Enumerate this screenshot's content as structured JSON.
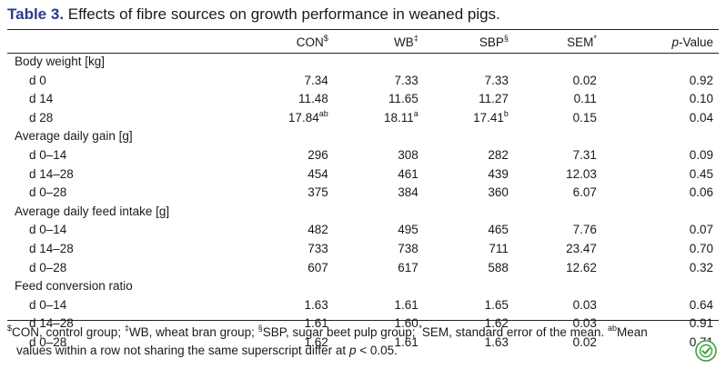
{
  "caption": {
    "label": "Table 3.",
    "text": "Effects of fibre sources on growth performance in weaned pigs."
  },
  "header": {
    "con": "CON",
    "con_mark": "$",
    "wb": "WB",
    "wb_mark": "‡",
    "sbp": "SBP",
    "sbp_mark": "§",
    "sem": "SEM",
    "sem_mark": "*",
    "p_italic": "p",
    "p_rest": "-Value"
  },
  "sections": [
    {
      "title": "Body weight [kg]",
      "rows": [
        {
          "label": "d 0",
          "con": "7.34",
          "con_sup": "",
          "wb": "7.33",
          "wb_sup": "",
          "sbp": "7.33",
          "sbp_sup": "",
          "sem": "0.02",
          "p": "0.92"
        },
        {
          "label": "d 14",
          "con": "11.48",
          "con_sup": "",
          "wb": "11.65",
          "wb_sup": "",
          "sbp": "11.27",
          "sbp_sup": "",
          "sem": "0.11",
          "p": "0.10"
        },
        {
          "label": "d 28",
          "con": "17.84",
          "con_sup": "ab",
          "wb": "18.11",
          "wb_sup": "a",
          "sbp": "17.41",
          "sbp_sup": "b",
          "sem": "0.15",
          "p": "0.04"
        }
      ]
    },
    {
      "title": "Average daily gain [g]",
      "rows": [
        {
          "label": "d 0–14",
          "con": "296",
          "con_sup": "",
          "wb": "308",
          "wb_sup": "",
          "sbp": "282",
          "sbp_sup": "",
          "sem": "7.31",
          "p": "0.09"
        },
        {
          "label": "d 14–28",
          "con": "454",
          "con_sup": "",
          "wb": "461",
          "wb_sup": "",
          "sbp": "439",
          "sbp_sup": "",
          "sem": "12.03",
          "p": "0.45"
        },
        {
          "label": "d 0–28",
          "con": "375",
          "con_sup": "",
          "wb": "384",
          "wb_sup": "",
          "sbp": "360",
          "sbp_sup": "",
          "sem": "6.07",
          "p": "0.06"
        }
      ]
    },
    {
      "title": "Average daily feed intake [g]",
      "rows": [
        {
          "label": "d 0–14",
          "con": "482",
          "con_sup": "",
          "wb": "495",
          "wb_sup": "",
          "sbp": "465",
          "sbp_sup": "",
          "sem": "7.76",
          "p": "0.07"
        },
        {
          "label": "d 14–28",
          "con": "733",
          "con_sup": "",
          "wb": "738",
          "wb_sup": "",
          "sbp": "711",
          "sbp_sup": "",
          "sem": "23.47",
          "p": "0.70"
        },
        {
          "label": "d 0–28",
          "con": "607",
          "con_sup": "",
          "wb": "617",
          "wb_sup": "",
          "sbp": "588",
          "sbp_sup": "",
          "sem": "12.62",
          "p": "0.32"
        }
      ]
    },
    {
      "title": "Feed conversion ratio",
      "rows": [
        {
          "label": "d 0–14",
          "con": "1.63",
          "con_sup": "",
          "wb": "1.61",
          "wb_sup": "",
          "sbp": "1.65",
          "sbp_sup": "",
          "sem": "0.03",
          "p": "0.64"
        },
        {
          "label": "d 14–28",
          "con": "1.61",
          "con_sup": "",
          "wb": "1.60",
          "wb_sup": "",
          "sbp": "1.62",
          "sbp_sup": "",
          "sem": "0.03",
          "p": "0.91"
        },
        {
          "label": "d 0–28",
          "con": "1.62",
          "con_sup": "",
          "wb": "1.61",
          "wb_sup": "",
          "sbp": "1.63",
          "sbp_sup": "",
          "sem": "0.02",
          "p": "0.71"
        }
      ]
    }
  ],
  "footnote": {
    "con_mark": "$",
    "con_text": "CON, control group; ",
    "wb_mark": "‡",
    "wb_text": "WB, wheat bran group; ",
    "sbp_mark": "§",
    "sbp_text": "SBP, sugar beet pulp group; ",
    "sem_mark": "*",
    "sem_text": "SEM, standard error of the mean. ",
    "ab_mark": "ab",
    "ab_text": "Mean",
    "line2_pre": "values within a row not sharing the same superscript differ at ",
    "line2_p": "p",
    "line2_post": " < 0.05."
  },
  "colors": {
    "caption_label": "#2b3a8c",
    "logo": "#3aa03a"
  },
  "logo_icon": "crossmark-icon"
}
